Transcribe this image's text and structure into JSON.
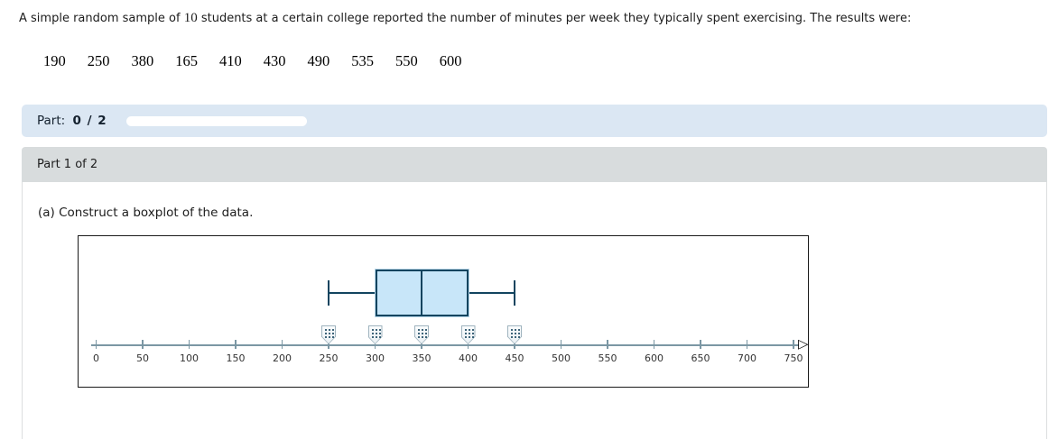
{
  "question": {
    "prefix": "A simple random sample of",
    "sample_size": "10",
    "suffix": "students at a certain college reported the number of minutes per week they typically spent exercising. The results were:"
  },
  "data_values": [
    "190",
    "250",
    "380",
    "165",
    "410",
    "430",
    "490",
    "535",
    "550",
    "600"
  ],
  "progress": {
    "label_prefix": "Part:",
    "label_value": "0 / 2",
    "percent": 0
  },
  "part_header": {
    "label": "Part 1 of 2"
  },
  "prompt": "(a) Construct a boxplot of the data.",
  "colors": {
    "progress_bar_bg": "#dbe7f3",
    "part_header_bg": "#d8dcdd",
    "box_fill": "#c8e6f9",
    "box_border": "#12445f",
    "axis_line": "#7b97a4",
    "handle_border": "#9fb3be",
    "handle_fill": "#eaf0f4",
    "handle_dots": "#1d4a63"
  },
  "chart_data": {
    "type": "boxplot",
    "title": "",
    "xlabel": "",
    "axis": {
      "min": 0,
      "max": 750,
      "step": 50,
      "tick_labels": [
        "0",
        "50",
        "100",
        "150",
        "200",
        "250",
        "300",
        "350",
        "400",
        "450",
        "500",
        "550",
        "600",
        "650",
        "700",
        "750"
      ],
      "arrow": "right"
    },
    "box": {
      "min": 250,
      "q1": 300,
      "median": 350,
      "q3": 400,
      "max": 450
    },
    "handles": [
      250,
      300,
      350,
      400,
      450
    ],
    "arrow_glyph": "▷"
  }
}
